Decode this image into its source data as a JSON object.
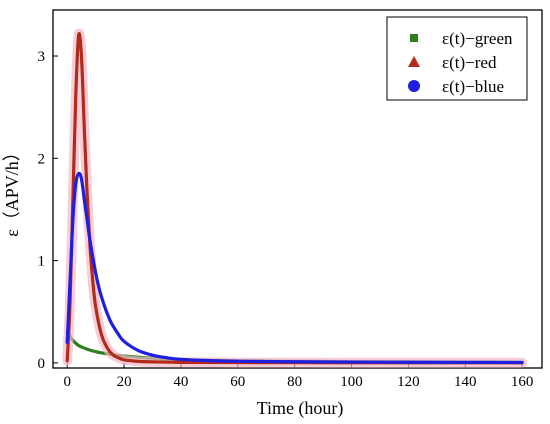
{
  "chart_data": {
    "type": "line",
    "xlabel": "Time (hour)",
    "ylabel": "ε（APV/h）",
    "xlim": [
      -5,
      167
    ],
    "ylim": [
      -0.05,
      3.45
    ],
    "xticks": [
      "0",
      "20",
      "40",
      "60",
      "80",
      "100",
      "120",
      "140",
      "160"
    ],
    "yticks": [
      "0",
      "1",
      "2",
      "3"
    ],
    "grid": false,
    "legend_position": "top-right",
    "series": [
      {
        "name": "ε(t)−green",
        "color": "#2e7d1e",
        "marker": "square",
        "x": [
          0,
          1,
          2,
          4,
          6,
          8,
          10,
          12,
          15,
          18,
          20,
          25,
          30,
          35,
          40,
          50,
          60,
          80,
          100,
          120,
          140,
          160
        ],
        "y": [
          0.3,
          0.26,
          0.22,
          0.17,
          0.145,
          0.125,
          0.11,
          0.098,
          0.085,
          0.073,
          0.067,
          0.055,
          0.045,
          0.038,
          0.032,
          0.025,
          0.02,
          0.015,
          0.012,
          0.01,
          0.008,
          0.007
        ]
      },
      {
        "name": "ε(t)−red",
        "color": "#b22a1a",
        "marker": "triangle",
        "x": [
          0,
          1,
          2,
          3,
          4,
          5,
          6,
          7,
          8,
          9,
          10,
          12,
          14,
          16,
          18,
          20,
          25,
          30,
          40,
          60,
          80,
          100,
          120,
          140,
          160
        ],
        "y": [
          0.02,
          0.6,
          1.6,
          2.6,
          3.2,
          3.0,
          2.3,
          1.65,
          1.15,
          0.8,
          0.55,
          0.28,
          0.15,
          0.08,
          0.05,
          0.03,
          0.015,
          0.01,
          0.005,
          0.003,
          0.002,
          0.001,
          0.001,
          0.001,
          0.001
        ]
      },
      {
        "name": "ε(t)−blue",
        "color": "#1f1fe0",
        "marker": "circle",
        "x": [
          0,
          1,
          2,
          3,
          4,
          5,
          6,
          7,
          8,
          10,
          12,
          15,
          18,
          20,
          25,
          30,
          35,
          40,
          50,
          60,
          80,
          100,
          120,
          140,
          160
        ],
        "y": [
          0.2,
          0.8,
          1.4,
          1.75,
          1.85,
          1.8,
          1.6,
          1.4,
          1.2,
          0.88,
          0.65,
          0.42,
          0.28,
          0.21,
          0.12,
          0.075,
          0.05,
          0.035,
          0.022,
          0.016,
          0.011,
          0.008,
          0.006,
          0.005,
          0.004
        ]
      }
    ]
  }
}
